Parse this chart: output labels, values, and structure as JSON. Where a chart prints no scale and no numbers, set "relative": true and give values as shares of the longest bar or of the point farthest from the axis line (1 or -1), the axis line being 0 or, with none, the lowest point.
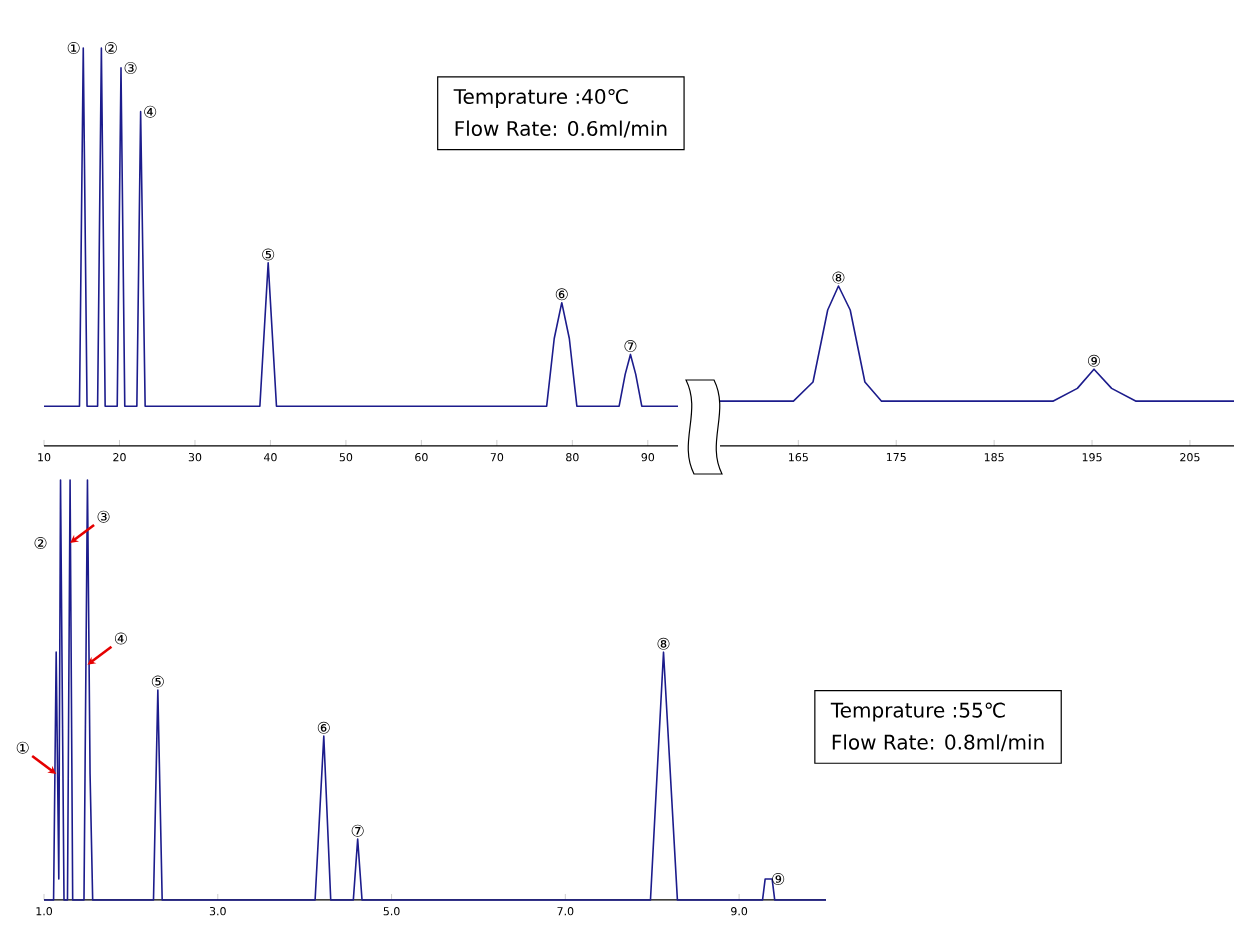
{
  "chart_data": [
    {
      "type": "line",
      "relative": true,
      "color": "#1c1c8c",
      "xlim": [
        10,
        94
      ],
      "xticks": [
        10,
        20,
        30,
        40,
        50,
        60,
        70,
        80,
        90
      ],
      "x": [
        10,
        14.7,
        15.2,
        15.7,
        17.1,
        17.6,
        18.1,
        19.7,
        20.2,
        20.7,
        22.3,
        22.8,
        23.4,
        38.6,
        39.7,
        40.8,
        76.6,
        77.6,
        78.6,
        79.6,
        80.6,
        86.2,
        87.0,
        87.7,
        88.4,
        89.2,
        94
      ],
      "values": [
        0.1,
        0.1,
        1.0,
        0.1,
        0.1,
        1.0,
        0.1,
        0.1,
        0.95,
        0.1,
        0.1,
        0.84,
        0.1,
        0.1,
        0.46,
        0.1,
        0.1,
        0.27,
        0.36,
        0.27,
        0.1,
        0.1,
        0.18,
        0.23,
        0.18,
        0.1,
        0.1
      ],
      "annotations": [
        {
          "text": "①",
          "x": 15.2,
          "y": 1.0
        },
        {
          "text": "②",
          "x": 17.6,
          "y": 1.0
        },
        {
          "text": "③",
          "x": 20.2,
          "y": 0.95
        },
        {
          "text": "④",
          "x": 22.8,
          "y": 0.84
        },
        {
          "text": "⑤",
          "x": 39.7,
          "y": 0.46
        },
        {
          "text": "⑥",
          "x": 78.6,
          "y": 0.36
        },
        {
          "text": "⑦",
          "x": 87.7,
          "y": 0.23
        },
        "Temprature :40℃",
        "Flow Rate: 0.6ml/min"
      ]
    },
    {
      "type": "line",
      "relative": true,
      "color": "#1c1c8c",
      "xlim": [
        157,
        209.5
      ],
      "xticks": [
        165,
        175,
        185,
        195,
        205
      ],
      "x": [
        157,
        164.5,
        166.5,
        168,
        169.1,
        170.3,
        171.8,
        173.5,
        191,
        193.5,
        195.2,
        197,
        199.5,
        209.5
      ],
      "values": [
        0.28,
        0.28,
        0.4,
        0.85,
        1.0,
        0.85,
        0.4,
        0.28,
        0.28,
        0.36,
        0.48,
        0.36,
        0.28,
        0.28
      ],
      "annotations": [
        {
          "text": "⑧",
          "x": 169.1,
          "y": 1.0
        },
        {
          "text": "⑨",
          "x": 195.2,
          "y": 0.48
        }
      ]
    },
    {
      "type": "line",
      "relative": true,
      "color": "#1c1c8c",
      "xlim": [
        1,
        10
      ],
      "xticks": [
        {
          "value": 1,
          "label": "1.0"
        },
        {
          "value": 3,
          "label": "3.0"
        },
        {
          "value": 5,
          "label": "5.0"
        },
        {
          "value": 7,
          "label": "7.0"
        },
        {
          "value": 9,
          "label": "9.0"
        }
      ],
      "x": [
        1.0,
        1.11,
        1.14,
        1.17,
        1.19,
        1.23,
        1.27,
        1.3,
        1.33,
        1.46,
        1.5,
        1.53,
        1.56,
        2.26,
        2.31,
        2.36,
        4.12,
        4.22,
        4.3,
        4.56,
        4.61,
        4.66,
        7.98,
        8.13,
        8.29,
        9.27,
        9.3,
        9.38,
        9.41,
        10
      ],
      "values": [
        0,
        0,
        0.59,
        0.05,
        1.0,
        0,
        0,
        1.0,
        0,
        0,
        1.0,
        0.3,
        0,
        0,
        0.5,
        0,
        0,
        0.39,
        0,
        0,
        0.145,
        0,
        0,
        0.59,
        0,
        0,
        0.05,
        0.05,
        0,
        0
      ],
      "annotations": [
        {
          "text": "①",
          "x": 1.14,
          "y": 0.3
        },
        {
          "text": "②",
          "x": 1.07,
          "y": 0.85
        },
        {
          "text": "③",
          "x": 1.3,
          "y": 0.85
        },
        {
          "text": "④",
          "x": 1.5,
          "y": 0.56
        },
        {
          "text": "⑤",
          "x": 2.31,
          "y": 0.5
        },
        {
          "text": "⑥",
          "x": 4.22,
          "y": 0.39
        },
        {
          "text": "⑦",
          "x": 4.61,
          "y": 0.145
        },
        {
          "text": "⑧",
          "x": 8.13,
          "y": 0.59
        },
        {
          "text": "⑨",
          "x": 9.34,
          "y": 0.05
        },
        "Temprature :55℃",
        "Flow Rate: 0.8ml/min"
      ]
    }
  ]
}
